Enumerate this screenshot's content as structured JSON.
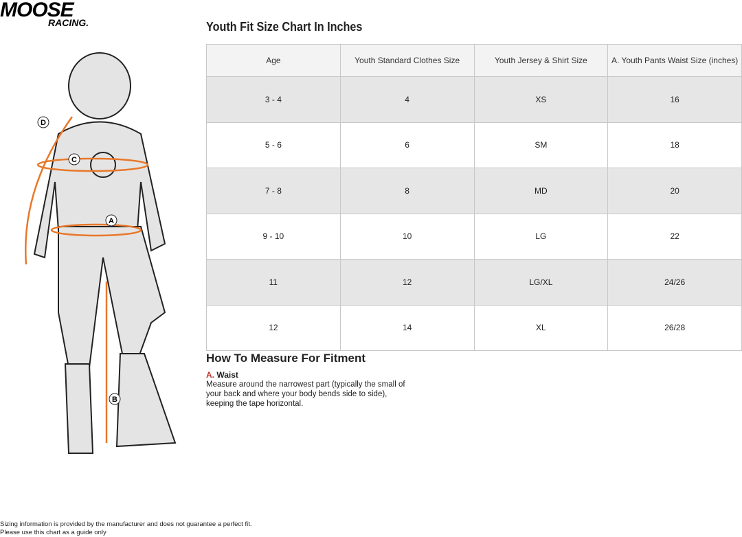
{
  "logo": {
    "line1": "MOOSE",
    "line2": "RACING."
  },
  "title": "Youth Fit Size Chart In Inches",
  "table": {
    "headers": [
      "Age",
      "Youth Standard Clothes Size",
      "Youth Jersey & Shirt Size",
      "A. Youth Pants Waist Size (inches)"
    ],
    "rows": [
      [
        "3 - 4",
        "4",
        "XS",
        "16"
      ],
      [
        "5 - 6",
        "6",
        "SM",
        "18"
      ],
      [
        "7 - 8",
        "8",
        "MD",
        "20"
      ],
      [
        "9 - 10",
        "10",
        "LG",
        "22"
      ],
      [
        "11",
        "12",
        "LG/XL",
        "24/26"
      ],
      [
        "12",
        "14",
        "XL",
        "26/28"
      ]
    ]
  },
  "figure": {
    "markers": [
      "D",
      "C",
      "A",
      "B"
    ],
    "accent": "#e8782a"
  },
  "howto": {
    "title": "How To Measure For Fitment",
    "item_letter": "A.",
    "item_label": "Waist",
    "item_desc": "Measure around the narrowest part (typically the small of your back and where your body bends side to side), keeping the tape horizontal."
  },
  "footer": {
    "line1": "Sizing information is provided by the manufacturer and does not guarantee a perfect fit.",
    "line2": "Please use this chart as a guide only"
  }
}
